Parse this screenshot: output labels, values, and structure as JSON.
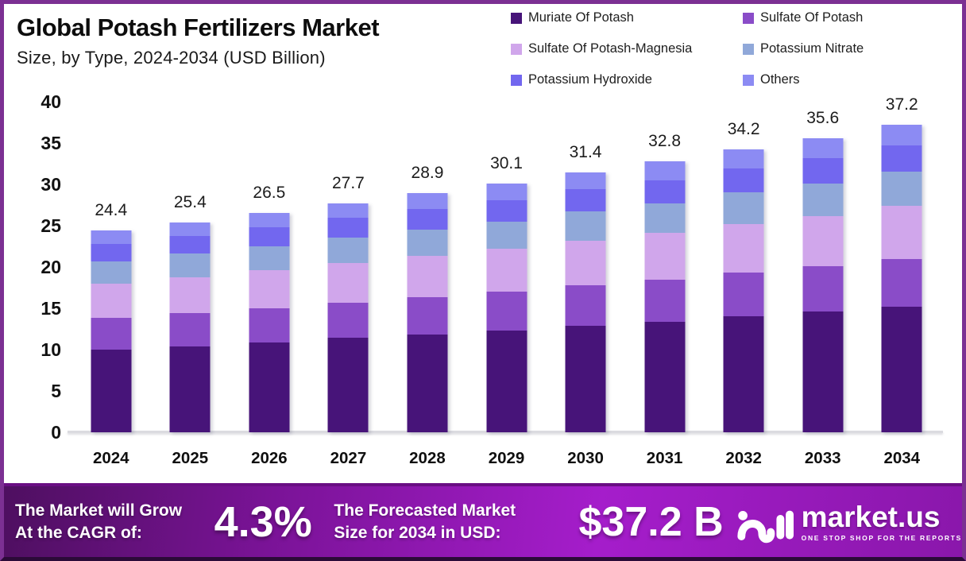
{
  "header": {
    "title": "Global Potash Fertilizers Market",
    "subtitle": "Size, by Type, 2024-2034 (USD Billion)"
  },
  "colors": {
    "frame_border": "#7C3093",
    "banner_gradient_start": "#4E0F60",
    "banner_gradient_mid": "#A51DCB",
    "banner_gradient_end": "#8A17AB",
    "muriate_of_potash": "#471479",
    "sulfate_of_potash": "#8A4CC8",
    "sulfate_of_potash_magnesia": "#D0A6EB",
    "potassium_nitrate": "#90A8D9",
    "potassium_hydroxide": "#7267EF",
    "others": "#8C8BF3"
  },
  "chart_data": {
    "type": "bar",
    "stacked": true,
    "title": "Global Potash Fertilizers Market Size, by Type, 2024-2034 (USD Billion)",
    "xlabel": "",
    "ylabel": "",
    "ylim": [
      0,
      40
    ],
    "ytick_step": 5,
    "yticks": [
      0,
      5,
      10,
      15,
      20,
      25,
      30,
      35,
      40
    ],
    "grid": false,
    "legend_position": "top-right",
    "categories": [
      "2024",
      "2025",
      "2026",
      "2027",
      "2028",
      "2029",
      "2030",
      "2031",
      "2032",
      "2033",
      "2034"
    ],
    "totals": [
      24.4,
      25.4,
      26.5,
      27.7,
      28.9,
      30.1,
      31.4,
      32.8,
      34.2,
      35.6,
      37.2
    ],
    "series": [
      {
        "name": "Muriate Of Potash",
        "color": "#471479",
        "values": [
          10.0,
          10.4,
          10.9,
          11.4,
          11.8,
          12.3,
          12.9,
          13.4,
          14.0,
          14.6,
          15.2
        ]
      },
      {
        "name": "Sulfate Of Potash",
        "color": "#8A4CC8",
        "values": [
          3.8,
          4.0,
          4.1,
          4.3,
          4.5,
          4.7,
          4.9,
          5.1,
          5.3,
          5.5,
          5.8
        ]
      },
      {
        "name": "Sulfate Of Potash-Magnesia",
        "color": "#D0A6EB",
        "values": [
          4.2,
          4.4,
          4.6,
          4.8,
          5.0,
          5.2,
          5.4,
          5.6,
          5.9,
          6.1,
          6.4
        ]
      },
      {
        "name": "Potassium Nitrate",
        "color": "#90A8D9",
        "values": [
          2.7,
          2.8,
          2.9,
          3.1,
          3.2,
          3.3,
          3.5,
          3.6,
          3.8,
          3.9,
          4.1
        ]
      },
      {
        "name": "Potassium Hydroxide",
        "color": "#7267EF",
        "values": [
          2.1,
          2.2,
          2.3,
          2.4,
          2.5,
          2.6,
          2.7,
          2.8,
          2.9,
          3.1,
          3.2
        ]
      },
      {
        "name": "Others",
        "color": "#8C8BF3",
        "values": [
          1.6,
          1.6,
          1.7,
          1.7,
          1.9,
          2.0,
          2.0,
          2.3,
          2.3,
          2.4,
          2.5
        ]
      }
    ]
  },
  "footer": {
    "cagr_label_line1": "The Market will Grow",
    "cagr_label_line2": "At the CAGR of:",
    "cagr_value": "4.3%",
    "forecast_label_line1": "The Forecasted Market",
    "forecast_label_line2": "Size for 2034 in USD:",
    "forecast_value": "$37.2 B",
    "brand_name": "market.us",
    "brand_tagline": "ONE STOP SHOP FOR THE REPORTS"
  }
}
